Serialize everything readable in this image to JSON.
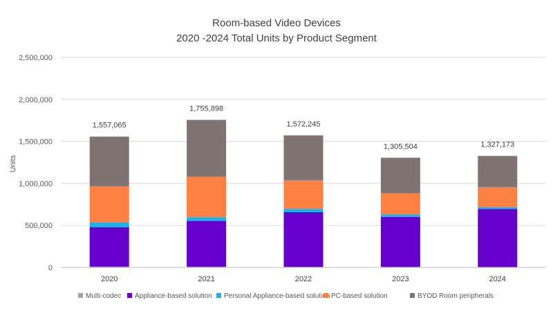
{
  "chart_data": {
    "type": "bar",
    "stacked": true,
    "title": "Room-based Video Devices",
    "subtitle": "2020 -2024 Total Units by Product Segment",
    "xlabel": "",
    "ylabel": "Units",
    "ylim": [
      0,
      2500000
    ],
    "yticks": [
      "0",
      "500,000",
      "1,000,000",
      "1,500,000",
      "2,000,000",
      "2,500,000"
    ],
    "ytick_values": [
      0,
      500000,
      1000000,
      1500000,
      2000000,
      2500000
    ],
    "grid": true,
    "legend_position": "bottom",
    "categories": [
      "2020",
      "2021",
      "2022",
      "2023",
      "2024"
    ],
    "series": [
      {
        "name": "Multi-codec",
        "color": "#a5a5a5",
        "values": [
          10000,
          9000,
          8000,
          7000,
          6000
        ]
      },
      {
        "name": "Appliance-based solution",
        "color": "#6600cc",
        "values": [
          470000,
          545000,
          650000,
          595000,
          690000
        ]
      },
      {
        "name": "Personal Appliance-based solution",
        "color": "#1fb0ee",
        "values": [
          55000,
          45000,
          40000,
          30000,
          20000
        ]
      },
      {
        "name": "PC-based solution",
        "color": "#ff8040",
        "values": [
          430000,
          480000,
          340000,
          250000,
          240000
        ]
      },
      {
        "name": "BYOD Room peripherals",
        "color": "#7f7471",
        "values": [
          592065,
          676898,
          534245,
          423504,
          371173
        ]
      }
    ],
    "totals": [
      "1,557,065",
      "1,755,898",
      "1,572,245",
      "1,305,504",
      "1,327,173"
    ],
    "total_values": [
      1557065,
      1755898,
      1572245,
      1305504,
      1327173
    ]
  }
}
